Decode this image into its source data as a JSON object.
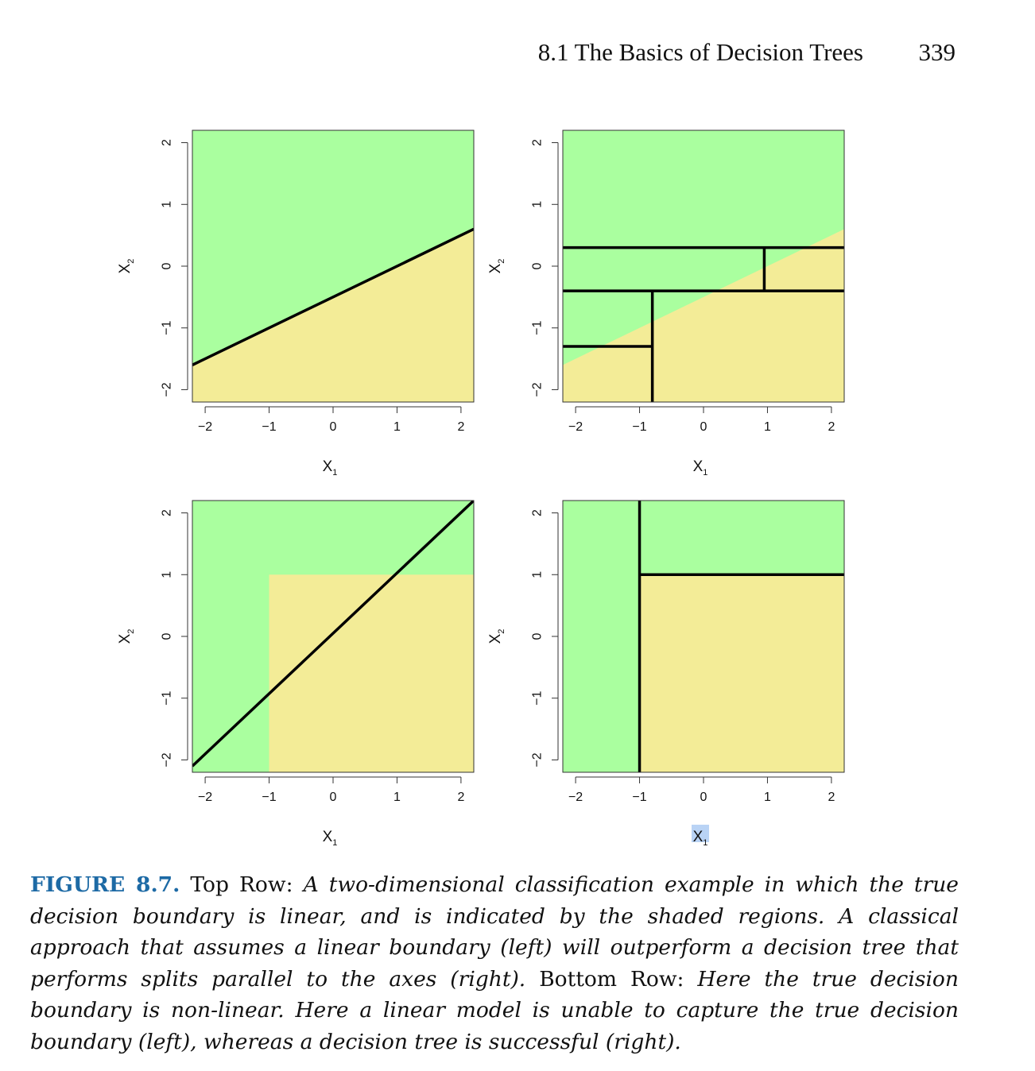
{
  "header": {
    "section_title": "8.1 The Basics of Decision Trees",
    "page_number": "339"
  },
  "colors": {
    "green_region": "#aaff9f",
    "yellow_region": "#f3ec97",
    "boundary_line": "#000000",
    "caption_label": "#1d6aa5"
  },
  "chart_data": [
    {
      "type": "region",
      "panel": "top-left",
      "xlabel": "X1",
      "ylabel": "X2",
      "xlim": [
        -2.2,
        2.2
      ],
      "ylim": [
        -2.2,
        2.2
      ],
      "xticks": [
        -2,
        -1,
        0,
        1,
        2
      ],
      "yticks": [
        -2,
        -1,
        0,
        1,
        2
      ],
      "true_boundary": {
        "kind": "linear",
        "slope": 0.5,
        "intercept": -0.5,
        "above": "green",
        "below": "yellow"
      },
      "model_lines": [
        {
          "x": [
            -2.2,
            2.2
          ],
          "y": [
            -1.6,
            0.6
          ]
        }
      ]
    },
    {
      "type": "region",
      "panel": "top-right",
      "xlabel": "X1",
      "ylabel": "X2",
      "xlim": [
        -2.2,
        2.2
      ],
      "ylim": [
        -2.2,
        2.2
      ],
      "xticks": [
        -2,
        -1,
        0,
        1,
        2
      ],
      "yticks": [
        -2,
        -1,
        0,
        1,
        2
      ],
      "true_boundary": {
        "kind": "linear",
        "slope": 0.5,
        "intercept": -0.5,
        "above": "green",
        "below": "yellow"
      },
      "model_lines": [
        {
          "x": [
            -2.2,
            2.2
          ],
          "y": [
            0.3,
            0.3
          ]
        },
        {
          "x": [
            -2.2,
            2.2
          ],
          "y": [
            -0.4,
            -0.4
          ]
        },
        {
          "x": [
            0.95,
            0.95
          ],
          "y": [
            -0.4,
            0.3
          ]
        },
        {
          "x": [
            -0.8,
            -0.8
          ],
          "y": [
            -2.2,
            -0.4
          ]
        },
        {
          "x": [
            -2.2,
            -0.8
          ],
          "y": [
            -1.3,
            -1.3
          ]
        }
      ]
    },
    {
      "type": "region",
      "panel": "bottom-left",
      "xlabel": "X1",
      "ylabel": "X2",
      "xlim": [
        -2.2,
        2.2
      ],
      "ylim": [
        -2.2,
        2.2
      ],
      "xticks": [
        -2,
        -1,
        0,
        1,
        2
      ],
      "yticks": [
        -2,
        -1,
        0,
        1,
        2
      ],
      "true_boundary": {
        "kind": "box",
        "x_min": -1,
        "y_max": 1,
        "inside": "yellow",
        "outside": "green"
      },
      "model_lines": [
        {
          "x": [
            -2.2,
            2.2
          ],
          "y": [
            -2.1,
            2.2
          ]
        }
      ]
    },
    {
      "type": "region",
      "panel": "bottom-right",
      "xlabel": "X1",
      "ylabel": "X2",
      "xlim": [
        -2.2,
        2.2
      ],
      "ylim": [
        -2.2,
        2.2
      ],
      "xticks": [
        -2,
        -1,
        0,
        1,
        2
      ],
      "yticks": [
        -2,
        -1,
        0,
        1,
        2
      ],
      "true_boundary": {
        "kind": "box",
        "x_min": -1,
        "y_max": 1,
        "inside": "yellow",
        "outside": "green"
      },
      "model_lines": [
        {
          "x": [
            -1,
            -1
          ],
          "y": [
            -2.2,
            2.2
          ]
        },
        {
          "x": [
            -1,
            2.2
          ],
          "y": [
            1,
            1
          ]
        }
      ]
    }
  ],
  "caption": {
    "label": "FIGURE 8.7.",
    "top_row_prefix": "Top Row:",
    "top_row_text": "A two-dimensional classification example in which the true decision boundary is linear, and is indicated by the shaded regions. A classical approach that assumes a linear boundary (left) will outperform a decision tree that performs splits parallel to the axes (right).",
    "bottom_row_prefix": "Bottom Row:",
    "bottom_row_text": "Here the true decision boundary is non-linear. Here a linear model is unable to capture the true decision boundary (left), whereas a decision tree is successful (right)."
  }
}
